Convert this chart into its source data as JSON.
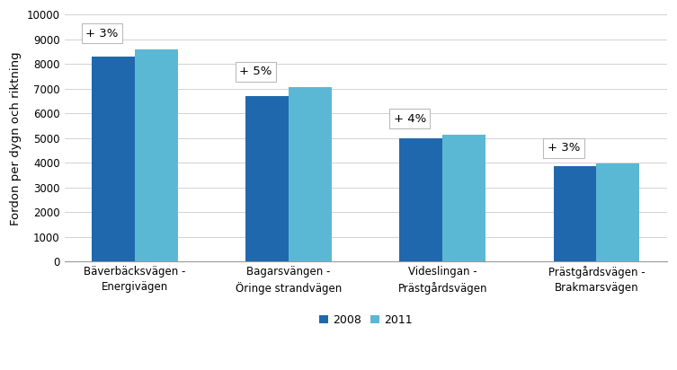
{
  "categories": [
    "Bäverbäcksvägen -\nEnergivägen",
    "Bagarsvängen -\nÖringe strandvägen",
    "Videslingan -\nPrästgårdsvägen",
    "Prästgårdsvägen -\nBrakmarsvägen"
  ],
  "values_2008": [
    8300,
    6700,
    5000,
    3850
  ],
  "values_2011": [
    8600,
    7050,
    5150,
    3960
  ],
  "annotations": [
    "+ 3%",
    "+ 5%",
    "+ 4%",
    "+ 3%"
  ],
  "color_2008": "#2068AE",
  "color_2011": "#5BB8D4",
  "ylabel": "Fordon per dygn och riktning",
  "ylim": [
    0,
    10000
  ],
  "yticks": [
    0,
    1000,
    2000,
    3000,
    4000,
    5000,
    6000,
    7000,
    8000,
    9000,
    10000
  ],
  "legend_labels": [
    "2008",
    "2011"
  ],
  "bar_width": 0.28,
  "annotation_fontsize": 9.5,
  "tick_fontsize": 8.5,
  "ylabel_fontsize": 9.5,
  "legend_fontsize": 9,
  "background_color": "#ffffff"
}
